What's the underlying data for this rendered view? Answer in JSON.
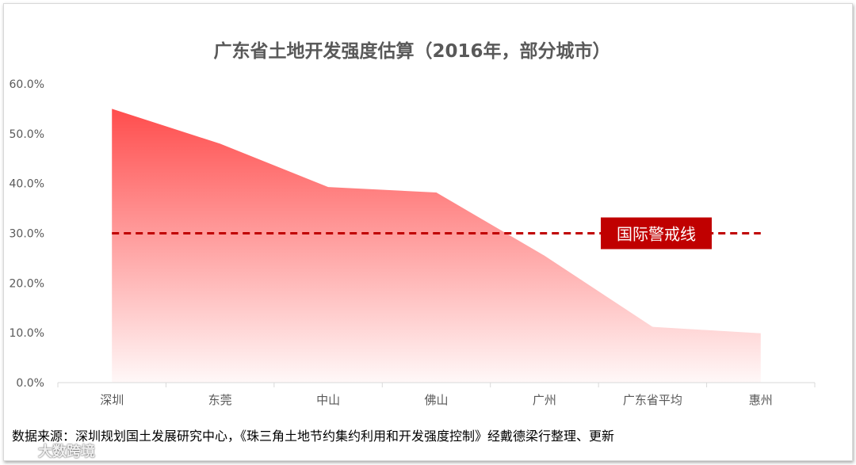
{
  "chart_data": {
    "type": "area",
    "title": "广东省土地开发强度估算（2016年，部分城市）",
    "categories": [
      "深圳",
      "东莞",
      "中山",
      "佛山",
      "广州",
      "广东省平均",
      "惠州"
    ],
    "values": [
      55.0,
      48.0,
      39.3,
      38.2,
      25.5,
      11.2,
      9.9
    ],
    "y_tick_labels": [
      "0.0%",
      "10.0%",
      "20.0%",
      "30.0%",
      "40.0%",
      "50.0%",
      "60.0%"
    ],
    "ylim": [
      0,
      60
    ],
    "value_format": "percent",
    "reference_line": {
      "value": 30.0,
      "label": "国际警戒线",
      "color": "#c00000",
      "style": "dashed"
    },
    "area_color": "#ff4d4d",
    "grid": false,
    "legend": "none"
  },
  "source": "数据来源：深圳规划国土发展研究中心，《珠三角土地节约集约利用和开发强度控制》经戴德梁行整理、更新",
  "watermark": "大数跨境"
}
